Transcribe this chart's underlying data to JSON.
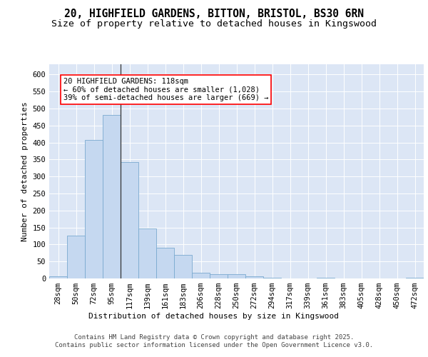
{
  "title_line1": "20, HIGHFIELD GARDENS, BITTON, BRISTOL, BS30 6RN",
  "title_line2": "Size of property relative to detached houses in Kingswood",
  "xlabel": "Distribution of detached houses by size in Kingswood",
  "ylabel": "Number of detached properties",
  "background_color": "#dce6f5",
  "bar_color": "#c5d8f0",
  "bar_edge_color": "#7aaad0",
  "categories": [
    "28sqm",
    "50sqm",
    "72sqm",
    "95sqm",
    "117sqm",
    "139sqm",
    "161sqm",
    "183sqm",
    "206sqm",
    "228sqm",
    "250sqm",
    "272sqm",
    "294sqm",
    "317sqm",
    "339sqm",
    "361sqm",
    "383sqm",
    "405sqm",
    "428sqm",
    "450sqm",
    "472sqm"
  ],
  "values": [
    7,
    127,
    408,
    480,
    342,
    148,
    90,
    70,
    17,
    13,
    13,
    7,
    3,
    0,
    0,
    3,
    0,
    0,
    0,
    0,
    3
  ],
  "vline_x": 4,
  "annotation_text": "20 HIGHFIELD GARDENS: 118sqm\n← 60% of detached houses are smaller (1,028)\n39% of semi-detached houses are larger (669) →",
  "ylim": [
    0,
    630
  ],
  "yticks": [
    0,
    50,
    100,
    150,
    200,
    250,
    300,
    350,
    400,
    450,
    500,
    550,
    600
  ],
  "footer_text": "Contains HM Land Registry data © Crown copyright and database right 2025.\nContains public sector information licensed under the Open Government Licence v3.0.",
  "title_fontsize": 10.5,
  "subtitle_fontsize": 9.5,
  "axis_label_fontsize": 8,
  "tick_fontsize": 7.5,
  "annotation_fontsize": 7.5,
  "footer_fontsize": 6.5
}
